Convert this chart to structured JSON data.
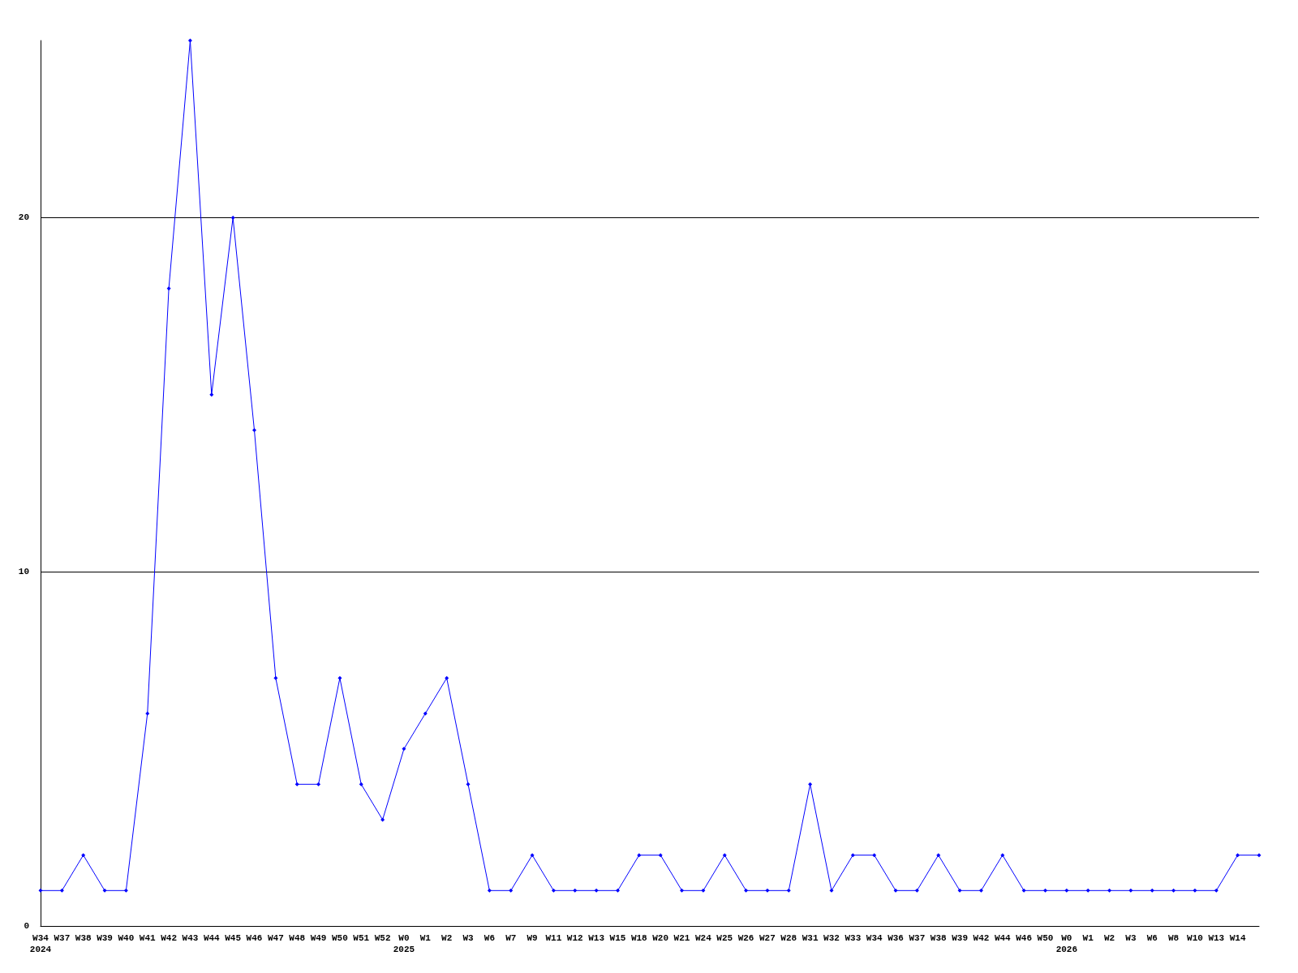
{
  "chart_data": {
    "type": "line",
    "categories": [
      "W34\n2024",
      "W37",
      "W38",
      "W39",
      "W40",
      "W41",
      "W42",
      "W43",
      "W44",
      "W45",
      "W46",
      "W47",
      "W48",
      "W49",
      "W50",
      "W51",
      "W52",
      "W0\n2025",
      "W1",
      "W2",
      "W3",
      "W6",
      "W7",
      "W9",
      "W11",
      "W12",
      "W13",
      "W15",
      "W18",
      "W20",
      "W21",
      "W24",
      "W25",
      "W26",
      "W27",
      "W28",
      "W31",
      "W32",
      "W33",
      "W34",
      "W36",
      "W37",
      "W38",
      "W39",
      "W42",
      "W44",
      "W46",
      "W50",
      "W0\n2026",
      "W1",
      "W2",
      "W3",
      "W6",
      "W8",
      "W10",
      "W13",
      "W14",
      null
    ],
    "series": [
      {
        "color": "#0000ff",
        "values": [
          1,
          1,
          2,
          1,
          1,
          6,
          18,
          25,
          15,
          20,
          14,
          7,
          4,
          4,
          7,
          4,
          3,
          5,
          6,
          7,
          4,
          1,
          1,
          2,
          1,
          1,
          1,
          1,
          2,
          2,
          1,
          1,
          2,
          1,
          1,
          1,
          4,
          1,
          2,
          2,
          1,
          1,
          2,
          1,
          1,
          2,
          1,
          1,
          1,
          1,
          1,
          1,
          1,
          1,
          1,
          1,
          2,
          2
        ]
      }
    ],
    "ylim": [
      0,
      25
    ],
    "yticks": [
      0,
      10,
      20
    ],
    "grid": "y",
    "marker": "diamond",
    "line_style": "solid"
  }
}
